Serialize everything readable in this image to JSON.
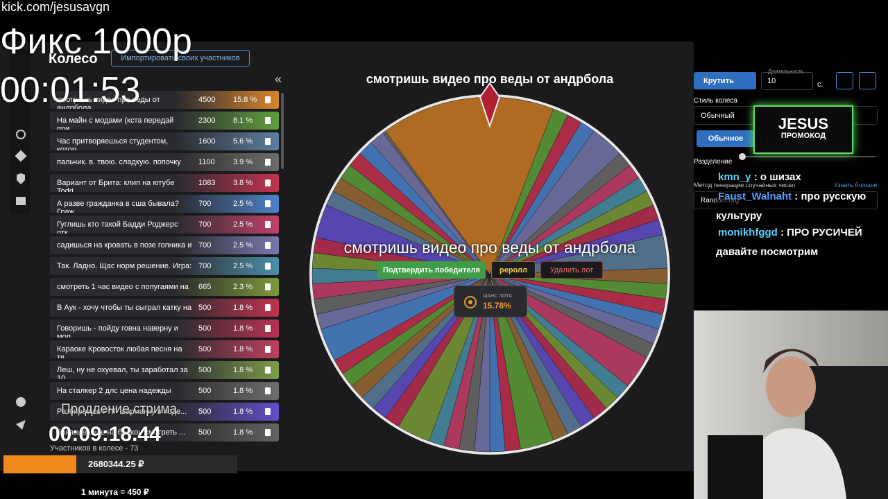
{
  "overlay": {
    "url": "kick.com/jesusavgn",
    "fix": "Фикс 1000р",
    "timer": "00:01:53"
  },
  "header": {
    "title": "Колесо",
    "import_button": "Импортировать своих участников",
    "collapse": "«"
  },
  "lots": [
    {
      "name": "смотришь видео про веды от андрбола",
      "amount": 4500,
      "percent": "15.8 %",
      "color": "#d9862c"
    },
    {
      "name": "На майн с модами (кста передай при...",
      "amount": 2300,
      "percent": "8.1 %",
      "color": "#5f9e3c"
    },
    {
      "name": "Час притворяешься студентом, котор...",
      "amount": 1600,
      "percent": "5.6 %",
      "color": "#5d7f9e"
    },
    {
      "name": "пальчик. в. твою. сладкую. попочку",
      "amount": 1100,
      "percent": "3.9 %",
      "color": "#6c6c6c"
    },
    {
      "name": "Вариант от Брита: клип на ютубе Todri...",
      "amount": 1083,
      "percent": "3.8 %",
      "color": "#c23350"
    },
    {
      "name": "А разве гражданка в сша бывала?Граж...",
      "amount": 700,
      "percent": "2.5 %",
      "color": "#4d82c9"
    },
    {
      "name": "Гуглишь кто такой Бадди Роджерс отк...",
      "amount": 700,
      "percent": "2.5 %",
      "color": "#c2416a"
    },
    {
      "name": "садишься на кровать в позе гопника и ...",
      "amount": 700,
      "percent": "2.5 %",
      "color": "#7878ad"
    },
    {
      "name": "Так. Ладно. Щас норм решение. Игра: ...",
      "amount": 700,
      "percent": "2.5 %",
      "color": "#4b8fa8"
    },
    {
      "name": "смотреть 1 час видео с попугаями на ...",
      "amount": 665,
      "percent": "2.3 %",
      "color": "#7c9a38"
    },
    {
      "name": "В Аук - хочу чтобы ты сыграл катку на ...",
      "amount": 500,
      "percent": "1.8 %",
      "color": "#c0334f"
    },
    {
      "name": "Говоришь - пойду говна наверну и мол...",
      "amount": 500,
      "percent": "1.8 %",
      "color": "#b83252"
    },
    {
      "name": "Караоке Кровосток любая песня на тв...",
      "amount": 500,
      "percent": "1.8 %",
      "color": "#c0405e"
    },
    {
      "name": "Леш, ну не охуевал, ты заработал за 10...",
      "amount": 500,
      "percent": "1.8 %",
      "color": "#7d9c4a"
    },
    {
      "name": "На сталкер 2 длс цена надежды",
      "amount": 500,
      "percent": "1.8 %",
      "color": "#6e6e6e"
    },
    {
      "name": "Разбираешь РПГ шарманку в поде...",
      "amount": 500,
      "percent": "1.8 %",
      "color": "#6150c9"
    },
    {
      "name": "Заказываешь на балкон смотреть ...",
      "amount": 500,
      "percent": "1.8 %",
      "color": "#626262"
    }
  ],
  "footer": {
    "extension_label": "Продление стрима",
    "extension_timer": "00:09:18.44",
    "participants": "Участников в колесе - 73",
    "total": "2680344.25 ₽",
    "rate": "1 минута = 450 ₽"
  },
  "wheel": {
    "title": "смотришь видео про веды от андрбола",
    "winner": "смотришь видео про веды от андрбола",
    "confirm": "Подтвердить победителя",
    "reroll": "реролл",
    "delete": "Удалить лот",
    "chance_label": "ШАНС ЛОТА",
    "chance": "15.78%"
  },
  "settings": {
    "spin": "Крутить",
    "duration_label": "Длительность",
    "duration": 10,
    "seconds": "с.",
    "style_label": "Стиль колеса",
    "style": "Обычный",
    "mode": "Обычное",
    "split_label": "Разделение",
    "rng_label": "Метод генерации случайных чисел",
    "learn_more": "Узнать больше",
    "rng": "Random.org"
  },
  "promo": {
    "brand": "JESUS",
    "label": "ПРОМОКОД"
  },
  "chat": [
    {
      "user": "kmn_y",
      "message": "о шизах",
      "color": "#5ad0ff"
    },
    {
      "user": "Faust_Walnaht",
      "message": "про русскую культуру",
      "color": "#5aa0ff"
    },
    {
      "user": "monikhfggd",
      "message": "ПРО РУСИЧЕЙ давайте посмотрим",
      "color": "#5ad0ff"
    }
  ]
}
